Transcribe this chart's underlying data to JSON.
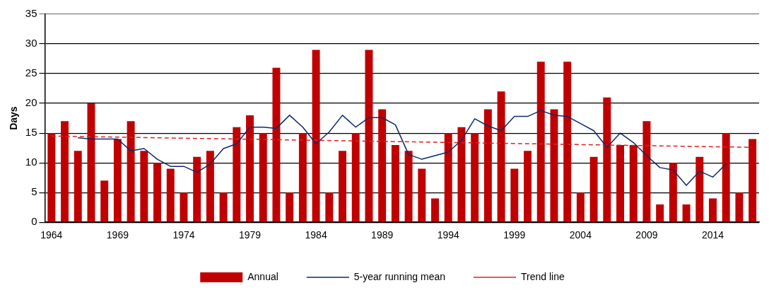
{
  "chart_data": {
    "type": "bar",
    "ylabel": "Days",
    "categories": [
      "1964",
      null,
      null,
      null,
      null,
      "1969",
      null,
      null,
      null,
      null,
      "1974",
      null,
      null,
      null,
      null,
      "1979",
      null,
      null,
      null,
      null,
      "1984",
      null,
      null,
      null,
      null,
      "1989",
      null,
      null,
      null,
      null,
      "1994",
      null,
      null,
      null,
      null,
      "1999",
      null,
      null,
      null,
      null,
      "2004",
      null,
      null,
      null,
      null,
      "2009",
      null,
      null,
      null,
      null,
      "2014",
      null,
      null,
      null
    ],
    "series": [
      {
        "name": "Annual",
        "color": "#c00000",
        "values": [
          15,
          17,
          12,
          20,
          7,
          14,
          17,
          12,
          10,
          9,
          5,
          11,
          12,
          5,
          16,
          18,
          15,
          26,
          5,
          15,
          29,
          5,
          12,
          15,
          29,
          19,
          13,
          12,
          9,
          4,
          15,
          16,
          15,
          19,
          22,
          9,
          12,
          27,
          19,
          27,
          5,
          11,
          21,
          13,
          13,
          17,
          3,
          10,
          3,
          11,
          4,
          15,
          5,
          14
        ]
      },
      {
        "name": "5-year running mean",
        "type": "line",
        "color": "#0d2a6b",
        "line_style": "solid",
        "values": [
          null,
          null,
          14.2,
          14.0,
          14.0,
          14.0,
          12.0,
          12.4,
          10.6,
          9.4,
          9.4,
          8.4,
          9.8,
          12.4,
          13.2,
          16.0,
          16.0,
          15.8,
          18.0,
          16.0,
          13.2,
          15.2,
          18.0,
          16.0,
          17.6,
          17.6,
          16.4,
          11.4,
          10.6,
          11.2,
          11.8,
          13.8,
          17.4,
          16.2,
          15.4,
          17.8,
          17.8,
          18.8,
          18.0,
          17.8,
          16.6,
          15.4,
          12.6,
          15.0,
          13.4,
          11.2,
          9.2,
          8.8,
          6.2,
          8.6,
          7.6,
          9.8,
          null,
          null
        ]
      },
      {
        "name": "Trend line",
        "type": "line",
        "color": "#e02020",
        "line_style": "dashed",
        "values": [
          14.5,
          null,
          null,
          null,
          null,
          null,
          null,
          null,
          null,
          null,
          null,
          null,
          null,
          null,
          null,
          null,
          null,
          null,
          null,
          null,
          null,
          null,
          null,
          null,
          null,
          null,
          null,
          null,
          null,
          null,
          null,
          null,
          null,
          null,
          null,
          null,
          null,
          null,
          null,
          null,
          null,
          null,
          null,
          null,
          null,
          null,
          null,
          null,
          null,
          null,
          null,
          null,
          null,
          12.6
        ]
      }
    ],
    "ylim": [
      0,
      35
    ],
    "yticks": [
      0,
      5,
      10,
      15,
      20,
      25,
      30,
      35
    ],
    "grid": "y",
    "legend": "bottom",
    "marker": "none"
  }
}
